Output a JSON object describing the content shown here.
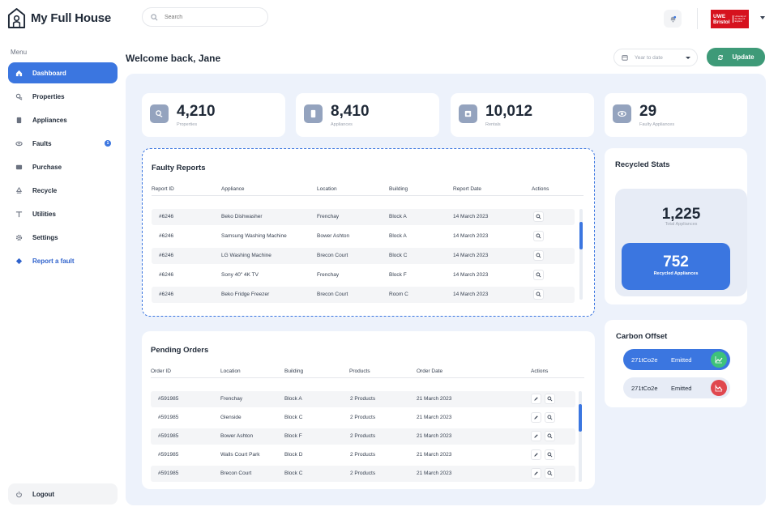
{
  "app": {
    "name": "My Full House"
  },
  "search": {
    "placeholder": "Search"
  },
  "org_logo": {
    "line1": "UWE",
    "line2": "Bristol",
    "tagline": "University of the West of England"
  },
  "sidebar": {
    "menu_label": "Menu",
    "items": [
      {
        "label": "Dashboard",
        "icon": "home-icon",
        "active": true
      },
      {
        "label": "Properties",
        "icon": "properties-icon"
      },
      {
        "label": "Appliances",
        "icon": "appliance-icon"
      },
      {
        "label": "Faults",
        "icon": "faults-icon",
        "badge": "1"
      },
      {
        "label": "Purchase",
        "icon": "wallet-icon"
      },
      {
        "label": "Recycle",
        "icon": "recycle-icon"
      },
      {
        "label": "Utilities",
        "icon": "utilities-icon"
      },
      {
        "label": "Settings",
        "icon": "gear-icon"
      },
      {
        "label": "Report a fault",
        "icon": "report-icon"
      }
    ],
    "logout_label": "Logout"
  },
  "header": {
    "welcome": "Welcome back, Jane",
    "date_filter": "Year to date",
    "update_label": "Update"
  },
  "stats": [
    {
      "value": "4,210",
      "label": "Properties",
      "icon": "properties-icon"
    },
    {
      "value": "8,410",
      "label": "Appliances",
      "icon": "appliance-icon"
    },
    {
      "value": "10,012",
      "label": "Rentals",
      "icon": "rentals-icon"
    },
    {
      "value": "29",
      "label": "Faulty Appliances",
      "icon": "faulty-icon"
    }
  ],
  "faulty_reports": {
    "title": "Faulty Reports",
    "columns": [
      "Report ID",
      "Appliance",
      "Location",
      "Building",
      "Report Date",
      "Actions"
    ],
    "rows": [
      [
        "#6246",
        "Beko Dishwasher",
        "Frenchay",
        "Block A",
        "14 March 2023"
      ],
      [
        "#6246",
        "Samsung Washing Machine",
        "Bower Ashton",
        "Block A",
        "14 March 2023"
      ],
      [
        "#6246",
        "LG Washing Machine",
        "Brecon Court",
        "Block C",
        "14 March 2023"
      ],
      [
        "#6246",
        "Sony 40\" 4K TV",
        "Frenchay",
        "Block F",
        "14 March 2023"
      ],
      [
        "#6246",
        "Beko Fridge Freezer",
        "Brecon Court",
        "Room C",
        "14 March 2023"
      ]
    ]
  },
  "pending_orders": {
    "title": "Pending Orders",
    "columns": [
      "Order ID",
      "Location",
      "Building",
      "Products",
      "Order Date",
      "Actions"
    ],
    "rows": [
      [
        "#591985",
        "Frenchay",
        "Block A",
        "2 Products",
        "21 March 2023"
      ],
      [
        "#591985",
        "Glenside",
        "Block C",
        "2 Products",
        "21 March 2023"
      ],
      [
        "#591985",
        "Bower Ashton",
        "Block F",
        "2 Products",
        "21 March 2023"
      ],
      [
        "#591985",
        "Walls Court Park",
        "Block D",
        "2 Products",
        "21 March 2023"
      ],
      [
        "#591985",
        "Brecon Court",
        "Block C",
        "2 Products",
        "21 March 2023"
      ]
    ]
  },
  "recycled": {
    "title": "Recycled Stats",
    "total_value": "1,225",
    "total_label": "Total Appliances",
    "recycled_value": "752",
    "recycled_label": "Recycled Appliances"
  },
  "carbon": {
    "title": "Carbon Offset",
    "rows": [
      {
        "value": "271tCo2e",
        "status": "Emitted",
        "trend": "up",
        "color": "#3ec27a"
      },
      {
        "value": "271tCo2e",
        "status": "Emitted",
        "trend": "down",
        "color": "#e0484f"
      }
    ]
  },
  "colors": {
    "accent": "#3b76e0",
    "update_button": "#3e9a78",
    "panel_bg": "#edf2fb"
  }
}
